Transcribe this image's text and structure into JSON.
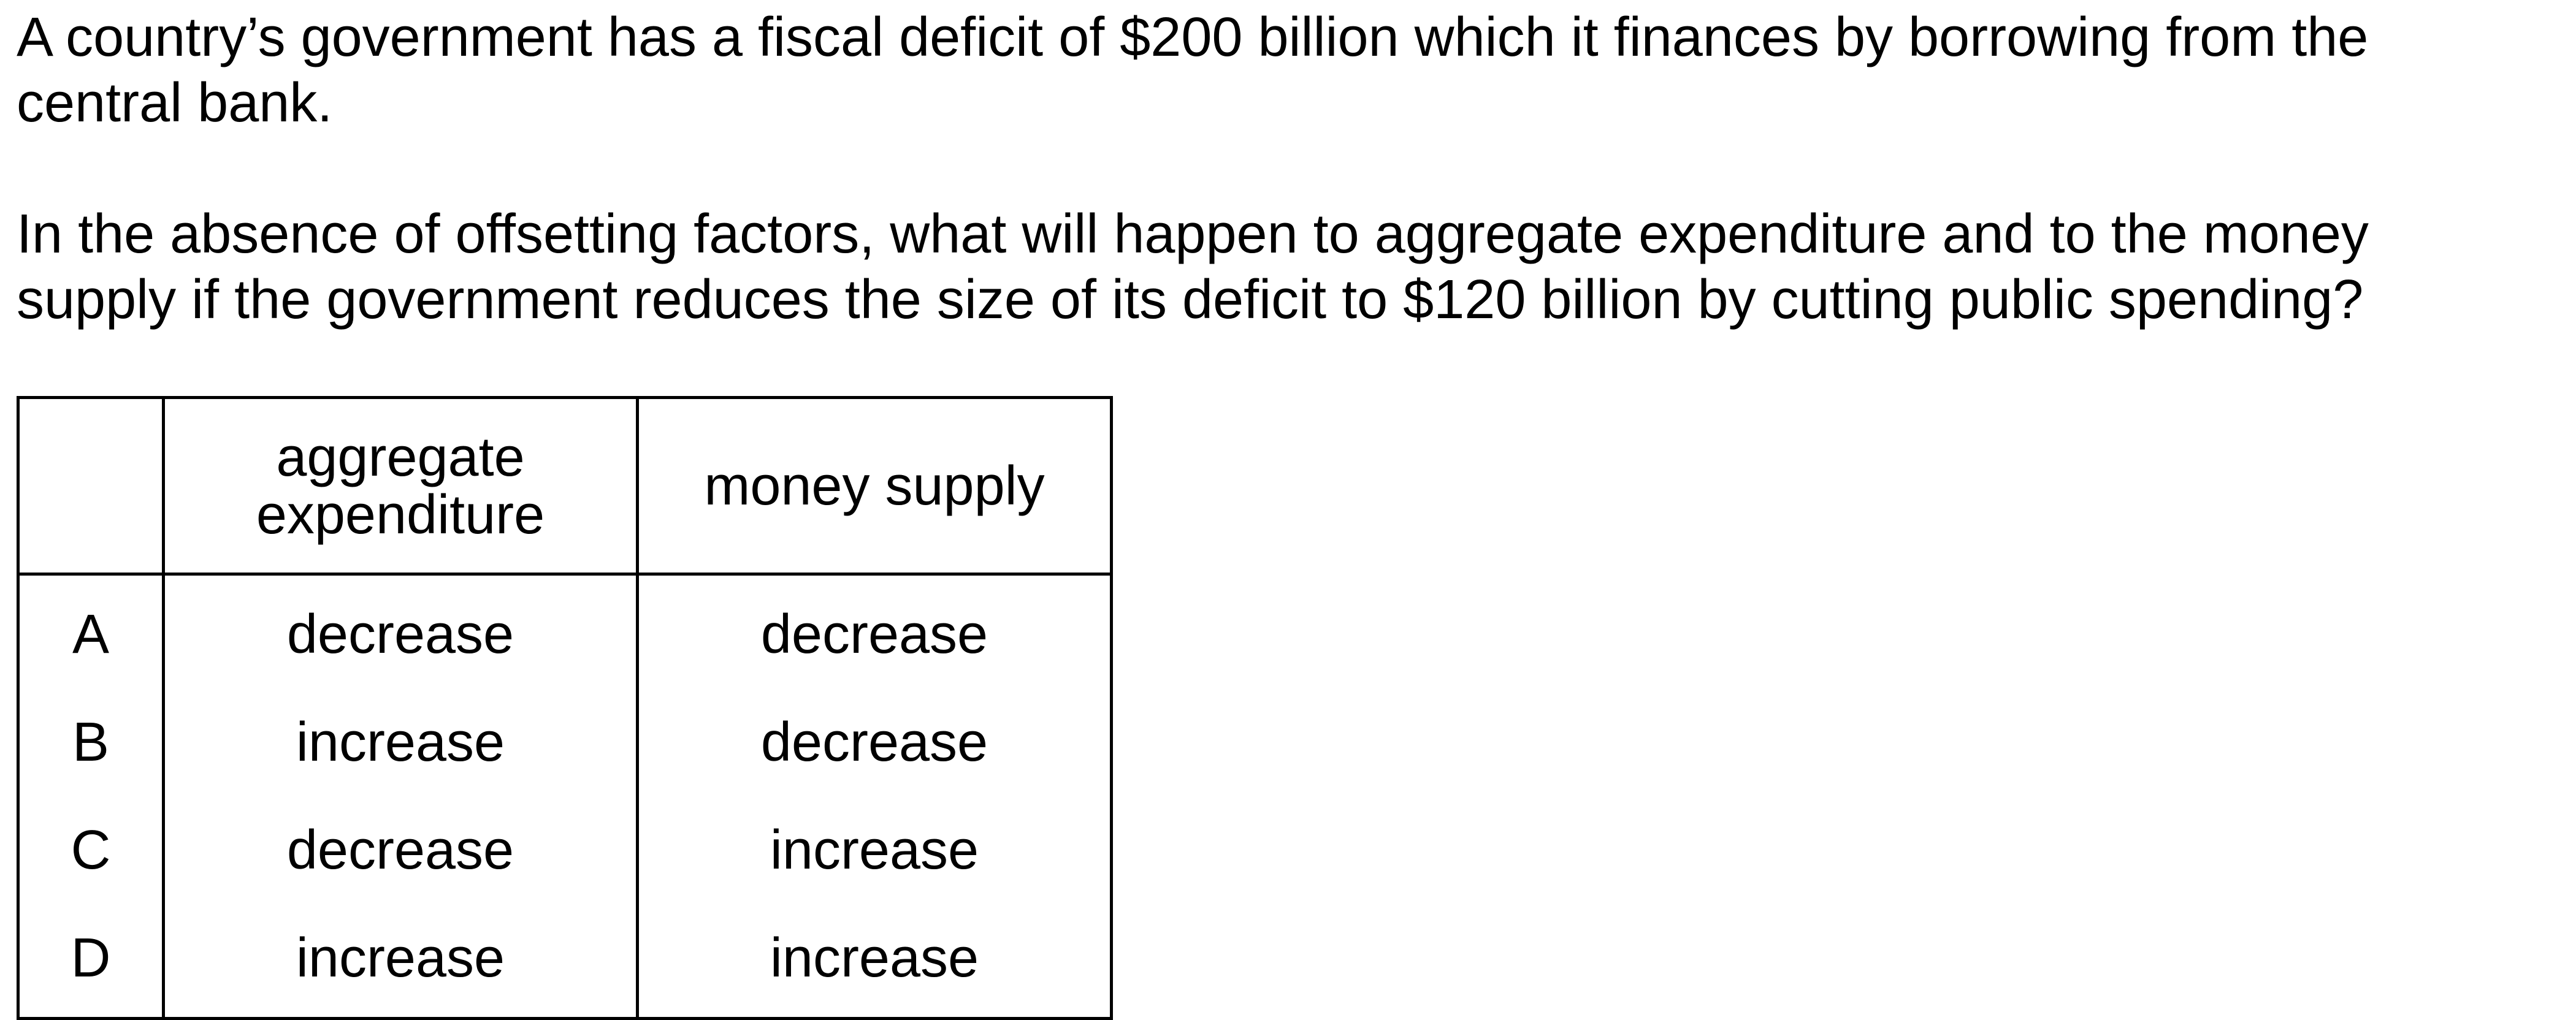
{
  "question": {
    "stem": "A country’s government has a fiscal deficit of $200 billion which it finances by borrowing from the central bank.",
    "prompt": "In the absence of offsetting factors, what will happen to aggregate expenditure and to the money supply if the government reduces the size of its deficit to $120 billion by cutting public spending?"
  },
  "table": {
    "headers": [
      "",
      "aggregate expenditure",
      "money supply"
    ],
    "rows": [
      {
        "key": "A",
        "aggregate_expenditure": "decrease",
        "money_supply": "decrease"
      },
      {
        "key": "B",
        "aggregate_expenditure": "increase",
        "money_supply": "decrease"
      },
      {
        "key": "C",
        "aggregate_expenditure": "decrease",
        "money_supply": "increase"
      },
      {
        "key": "D",
        "aggregate_expenditure": "increase",
        "money_supply": "increase"
      }
    ]
  }
}
